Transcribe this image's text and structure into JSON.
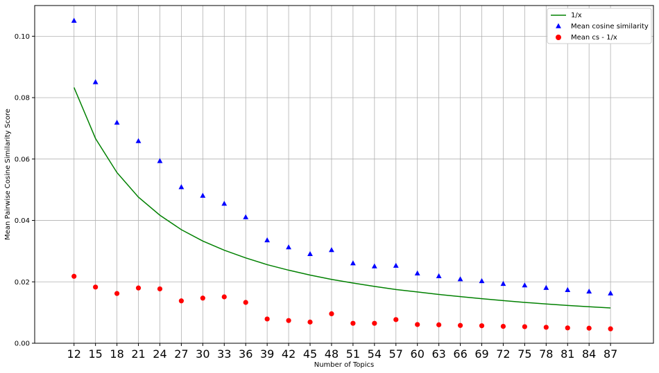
{
  "chart_data": {
    "type": "scatter",
    "xlabel": "Number of Topics",
    "ylabel": "Mean Pairwise Cosine Similarity Score",
    "xlim": [
      6.5,
      93
    ],
    "ylim": [
      0.0,
      0.11
    ],
    "x_ticks": [
      12,
      15,
      18,
      21,
      24,
      27,
      30,
      33,
      36,
      39,
      42,
      45,
      48,
      51,
      54,
      57,
      60,
      63,
      66,
      69,
      72,
      75,
      78,
      81,
      84,
      87
    ],
    "y_ticks": [
      "0.00",
      "0.02",
      "0.04",
      "0.06",
      "0.08",
      "0.10"
    ],
    "y_tick_values": [
      0.0,
      0.02,
      0.04,
      0.06,
      0.08,
      0.1
    ],
    "grid": true,
    "legend_position": "top-right",
    "x": [
      12,
      15,
      18,
      21,
      24,
      27,
      30,
      33,
      36,
      39,
      42,
      45,
      48,
      51,
      54,
      57,
      60,
      63,
      66,
      69,
      72,
      75,
      78,
      81,
      84,
      87
    ],
    "series": [
      {
        "name": "1/x",
        "legend_label": "1/x",
        "kind": "line",
        "color": "#008000",
        "values": [
          0.0833,
          0.0667,
          0.0556,
          0.0476,
          0.0417,
          0.037,
          0.0333,
          0.0303,
          0.0278,
          0.0256,
          0.0238,
          0.0222,
          0.0208,
          0.0196,
          0.0185,
          0.0175,
          0.0167,
          0.0159,
          0.0152,
          0.0145,
          0.0139,
          0.0133,
          0.0128,
          0.0123,
          0.0119,
          0.0115
        ]
      },
      {
        "name": "Mean cosine similarity",
        "legend_label": "Mean cosine similarity",
        "kind": "scatter",
        "marker": "triangle",
        "color": "#0000ff",
        "values": [
          0.105,
          0.085,
          0.0718,
          0.0658,
          0.0593,
          0.0508,
          0.048,
          0.0454,
          0.041,
          0.0335,
          0.0312,
          0.029,
          0.0303,
          0.026,
          0.025,
          0.0252,
          0.0227,
          0.0218,
          0.0208,
          0.0202,
          0.0193,
          0.0188,
          0.018,
          0.0173,
          0.0168,
          0.0162
        ]
      },
      {
        "name": "Mean cs - 1/x",
        "legend_label": "Mean cs - 1/x",
        "kind": "scatter",
        "marker": "circle",
        "color": "#ff0000",
        "values": [
          0.0218,
          0.0183,
          0.0162,
          0.018,
          0.0177,
          0.0138,
          0.0147,
          0.0151,
          0.0133,
          0.0079,
          0.0074,
          0.0069,
          0.0096,
          0.0065,
          0.0065,
          0.0077,
          0.0061,
          0.006,
          0.0058,
          0.0057,
          0.0055,
          0.0054,
          0.0052,
          0.005,
          0.0049,
          0.0047
        ]
      }
    ]
  }
}
